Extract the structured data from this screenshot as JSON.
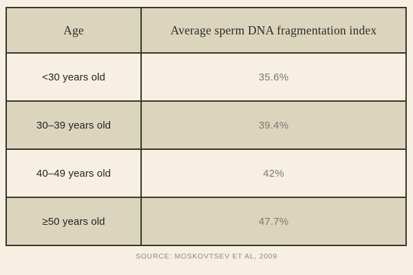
{
  "page": {
    "background_color": "#f6efe2",
    "khaki_color": "#dbd5be",
    "border_color": "#37352b",
    "value_text_color": "#7b786e",
    "source_text_color": "#8e8a7d"
  },
  "chart_data": {
    "type": "table",
    "title": "",
    "columns": [
      "Age",
      "Average sperm DNA fragmentation index"
    ],
    "rows": [
      {
        "age": "<30 years old",
        "value": "35.6%"
      },
      {
        "age": "30–39 years old",
        "value": "39.4%"
      },
      {
        "age": "40–49 years old",
        "value": "42%"
      },
      {
        "age": "≥50 years old",
        "value": "47.7%"
      }
    ],
    "values_numeric": [
      35.6,
      39.4,
      42,
      47.7
    ],
    "value_unit": "%",
    "layout": "two-column table, header row and alternating khaki/cream rows, all text centered"
  },
  "source": {
    "label": "SOURCE: MOSKOVTSEV ET AL, 2009"
  }
}
